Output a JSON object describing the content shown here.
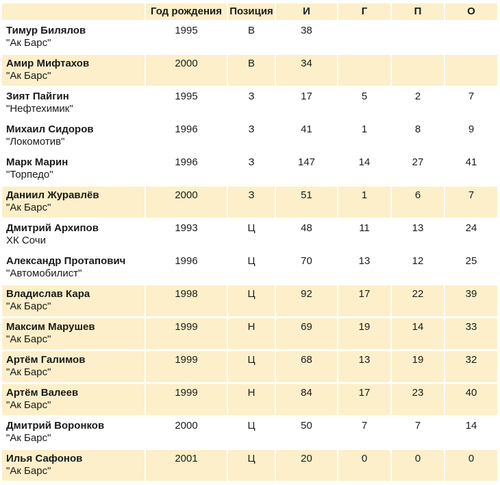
{
  "colors": {
    "highlight_row": "#fcefc9",
    "default_row": "#ffffff",
    "text": "#1a1a1a",
    "separator": "#ffffff"
  },
  "table": {
    "columns": [
      {
        "key": "name",
        "label": ""
      },
      {
        "key": "birth_year",
        "label": "Год рождения"
      },
      {
        "key": "position",
        "label": "Позиция"
      },
      {
        "key": "games",
        "label": "И"
      },
      {
        "key": "goals",
        "label": "Г"
      },
      {
        "key": "assists",
        "label": "П"
      },
      {
        "key": "points",
        "label": "О"
      }
    ],
    "rows": [
      {
        "name": "Тимур Билялов",
        "club": "\"Ак Барс\"",
        "birth_year": "1995",
        "position": "В",
        "games": "38",
        "goals": "",
        "assists": "",
        "points": "",
        "highlighted": false
      },
      {
        "name": "Амир Мифтахов",
        "club": "\"Ак Барс\"",
        "birth_year": "2000",
        "position": "В",
        "games": "34",
        "goals": "",
        "assists": "",
        "points": "",
        "highlighted": true
      },
      {
        "name": "Зият Пайгин",
        "club": "\"Нефтехимик\"",
        "birth_year": "1995",
        "position": "З",
        "games": "17",
        "goals": "5",
        "assists": "2",
        "points": "7",
        "highlighted": false
      },
      {
        "name": "Михаил Сидоров",
        "club": "\"Локомотив\"",
        "birth_year": "1996",
        "position": "З",
        "games": "41",
        "goals": "1",
        "assists": "8",
        "points": "9",
        "highlighted": false
      },
      {
        "name": "Марк Марин",
        "club": "\"Торпедо\"",
        "birth_year": "1996",
        "position": "З",
        "games": "147",
        "goals": "14",
        "assists": "27",
        "points": "41",
        "highlighted": false
      },
      {
        "name": "Даниил Журавлёв",
        "club": "\"Ак Барс\"",
        "birth_year": "2000",
        "position": "З",
        "games": "51",
        "goals": "1",
        "assists": "6",
        "points": "7",
        "highlighted": true
      },
      {
        "name": "Дмитрий Архипов",
        "club": "ХК Сочи",
        "birth_year": "1993",
        "position": "Ц",
        "games": "48",
        "goals": "11",
        "assists": "13",
        "points": "24",
        "highlighted": false
      },
      {
        "name": "Александр Протапович",
        "club": "\"Автомобилист\"",
        "birth_year": "1996",
        "position": "Ц",
        "games": "70",
        "goals": "13",
        "assists": "12",
        "points": "25",
        "highlighted": false
      },
      {
        "name": "Владислав Кара",
        "club": "\"Ак Барс\"",
        "birth_year": "1998",
        "position": "Ц",
        "games": "92",
        "goals": "17",
        "assists": "22",
        "points": "39",
        "highlighted": true
      },
      {
        "name": "Максим Марушев",
        "club": "\"Ак Барс\"",
        "birth_year": "1999",
        "position": "Н",
        "games": "69",
        "goals": "19",
        "assists": "14",
        "points": "33",
        "highlighted": true
      },
      {
        "name": "Артём Галимов",
        "club": "\"Ак Барс\"",
        "birth_year": "1999",
        "position": "Ц",
        "games": "68",
        "goals": "13",
        "assists": "19",
        "points": "32",
        "highlighted": true
      },
      {
        "name": "Артём Валеев",
        "club": "\"Ак Барс\"",
        "birth_year": "1999",
        "position": "Н",
        "games": "84",
        "goals": "17",
        "assists": "23",
        "points": "40",
        "highlighted": true
      },
      {
        "name": "Дмитрий Воронков",
        "club": "\"Ак Барс\"",
        "birth_year": "2000",
        "position": "Ц",
        "games": "50",
        "goals": "7",
        "assists": "7",
        "points": "14",
        "highlighted": false
      },
      {
        "name": "Илья Сафонов",
        "club": "\"Ак Барс\"",
        "birth_year": "2001",
        "position": "Ц",
        "games": "20",
        "goals": "0",
        "assists": "0",
        "points": "0",
        "highlighted": true
      }
    ]
  }
}
